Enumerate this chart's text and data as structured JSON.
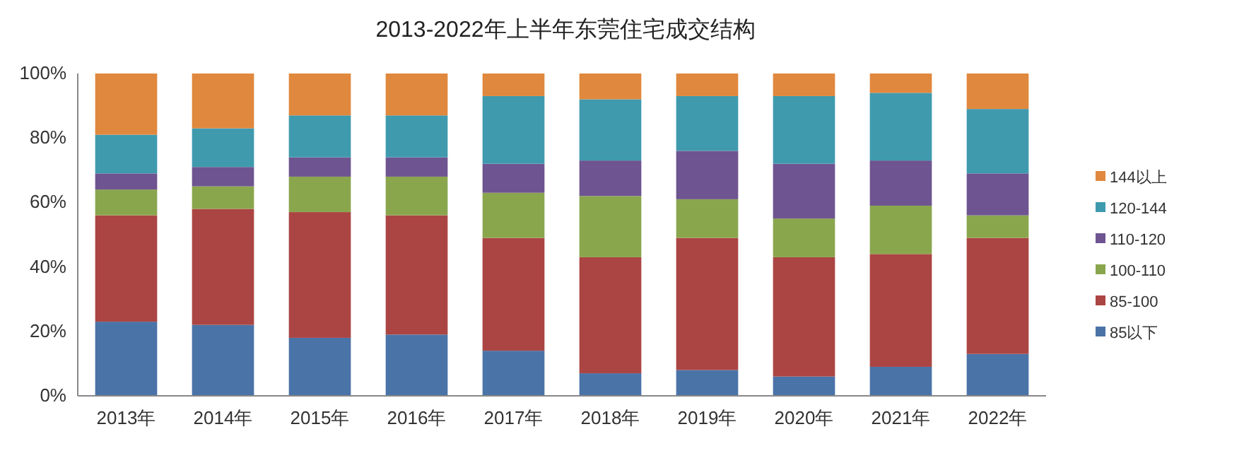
{
  "chart_data": {
    "type": "bar",
    "stacked": true,
    "title": "2013-2022年上半年东莞住宅成交结构",
    "categories": [
      "2013年",
      "2014年",
      "2015年",
      "2016年",
      "2017年",
      "2018年",
      "2019年",
      "2020年",
      "2021年",
      "2022年"
    ],
    "series": [
      {
        "name": "85以下",
        "color": "#4a73a8",
        "values": [
          23,
          22,
          18,
          19,
          14,
          7,
          8,
          6,
          9,
          13
        ]
      },
      {
        "name": "85-100",
        "color": "#ab4543",
        "values": [
          33,
          36,
          39,
          37,
          35,
          36,
          41,
          37,
          35,
          36
        ]
      },
      {
        "name": "100-110",
        "color": "#8aa64d",
        "values": [
          8,
          7,
          11,
          12,
          14,
          19,
          12,
          12,
          15,
          7
        ]
      },
      {
        "name": "110-120",
        "color": "#6e5490",
        "values": [
          5,
          6,
          6,
          6,
          9,
          11,
          15,
          17,
          14,
          13
        ]
      },
      {
        "name": "120-144",
        "color": "#3f9aae",
        "values": [
          12,
          12,
          13,
          13,
          21,
          19,
          17,
          21,
          21,
          20
        ]
      },
      {
        "name": "144以上",
        "color": "#e0883d",
        "values": [
          19,
          17,
          13,
          13,
          7,
          8,
          7,
          7,
          6,
          11
        ]
      }
    ],
    "ylim": [
      0,
      100
    ],
    "yticks": [
      {
        "value": 0,
        "label": "0%"
      },
      {
        "value": 20,
        "label": "20%"
      },
      {
        "value": 40,
        "label": "40%"
      },
      {
        "value": 60,
        "label": "60%"
      },
      {
        "value": 80,
        "label": "80%"
      },
      {
        "value": 100,
        "label": "100%"
      }
    ],
    "legend": "right",
    "grid": false
  }
}
